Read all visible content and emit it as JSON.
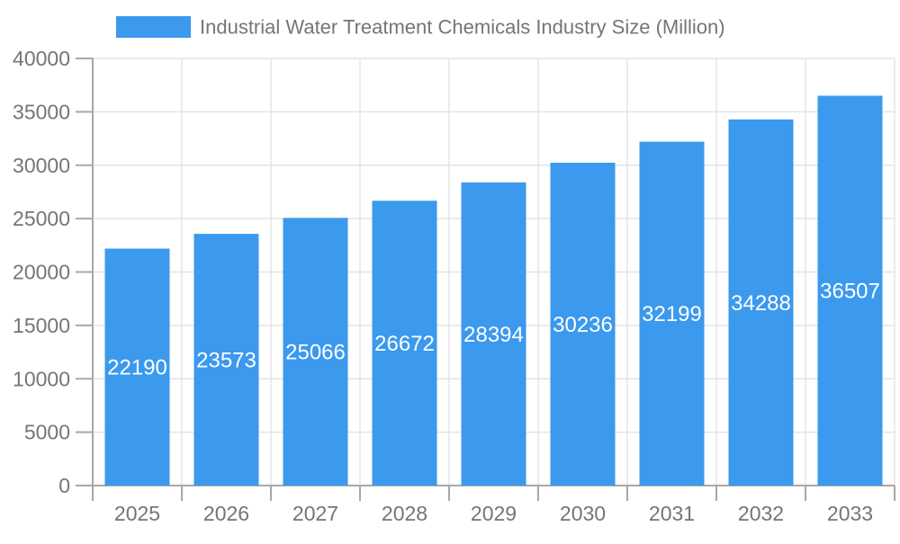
{
  "chart_data": {
    "type": "bar",
    "title": "Industrial Water Treatment Chemicals Industry Size (Million)",
    "legend": {
      "position": "top",
      "items": [
        {
          "label": "Industrial Water Treatment Chemicals Industry Size (Million)",
          "color": "#3B99EE"
        }
      ]
    },
    "categories": [
      "2025",
      "2026",
      "2027",
      "2028",
      "2029",
      "2030",
      "2031",
      "2032",
      "2033"
    ],
    "values": [
      22190,
      23573,
      25066,
      26672,
      28394,
      30236,
      32199,
      34288,
      36507
    ],
    "value_labels": [
      "22190",
      "23573",
      "25066",
      "26672",
      "28394",
      "30236",
      "32199",
      "34288",
      "36507"
    ],
    "value_labels_position": "inside-center",
    "xlabel": "",
    "ylabel": "",
    "ylim": [
      0,
      40000
    ],
    "y_ticks": [
      0,
      5000,
      10000,
      15000,
      20000,
      25000,
      30000,
      35000,
      40000
    ],
    "grid": true,
    "colors": {
      "bar": "#3B99EE",
      "value_label_text": "#FFFFFF",
      "axis_text": "#757575",
      "grid_line": "#E4E4E4",
      "axis_line": "#A8A8A8",
      "background": "#FFFFFF"
    }
  }
}
